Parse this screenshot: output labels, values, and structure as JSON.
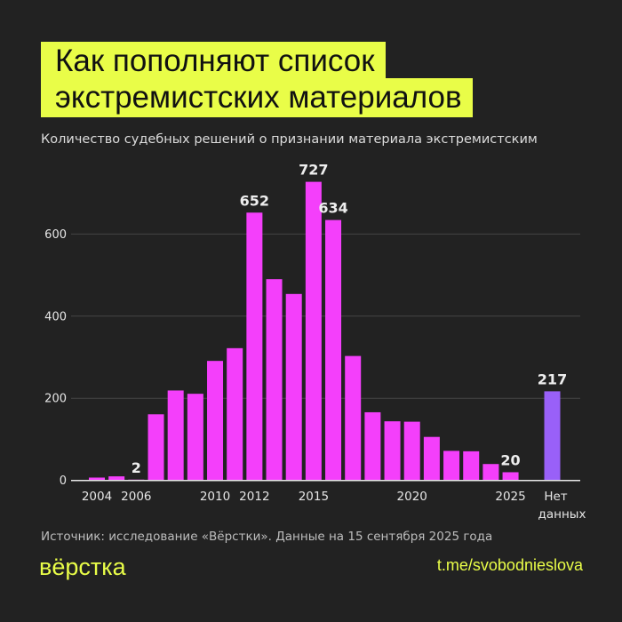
{
  "title_lines": [
    "Как пополняют список",
    "экстремистских материалов"
  ],
  "subtitle": "Количество судебных решений о признании материала экстремистским",
  "source": "Источник: исследование «Вёрстки». Данные на 15 сентября 2025 года",
  "logo": "вёрстка",
  "link": "t.me/svobodnieslova",
  "colors": {
    "background": "#222222",
    "accent": "#e9fd48",
    "bar": "#f43ffb",
    "bar_no_data": "#9960f8"
  },
  "chart_data": {
    "type": "bar",
    "subtitle": "Количество судебных решений о признании материала экстремистским",
    "categories": [
      "2004",
      "2005",
      "2006",
      "2007",
      "2008",
      "2009",
      "2010",
      "2011",
      "2012",
      "2013",
      "2014",
      "2015",
      "2016",
      "2017",
      "2018",
      "2019",
      "2020",
      "2021",
      "2022",
      "2023",
      "2024",
      "2025",
      "Нет данных"
    ],
    "values": [
      7,
      10,
      2,
      161,
      219,
      211,
      291,
      322,
      652,
      490,
      454,
      727,
      634,
      303,
      166,
      144,
      143,
      106,
      72,
      71,
      40,
      20,
      217
    ],
    "data_labels": {
      "2006": "2",
      "2012": "652",
      "2015": "727",
      "2016": "634",
      "2025": "20",
      "Нет данных": "217"
    },
    "x_tick_labels": [
      "2004",
      "2006",
      "2010",
      "2012",
      "2015",
      "2020",
      "2025",
      "Нет данных"
    ],
    "y_ticks": [
      0,
      200,
      400,
      600
    ],
    "ylim": [
      0,
      750
    ],
    "grid": true,
    "legend": "none"
  }
}
